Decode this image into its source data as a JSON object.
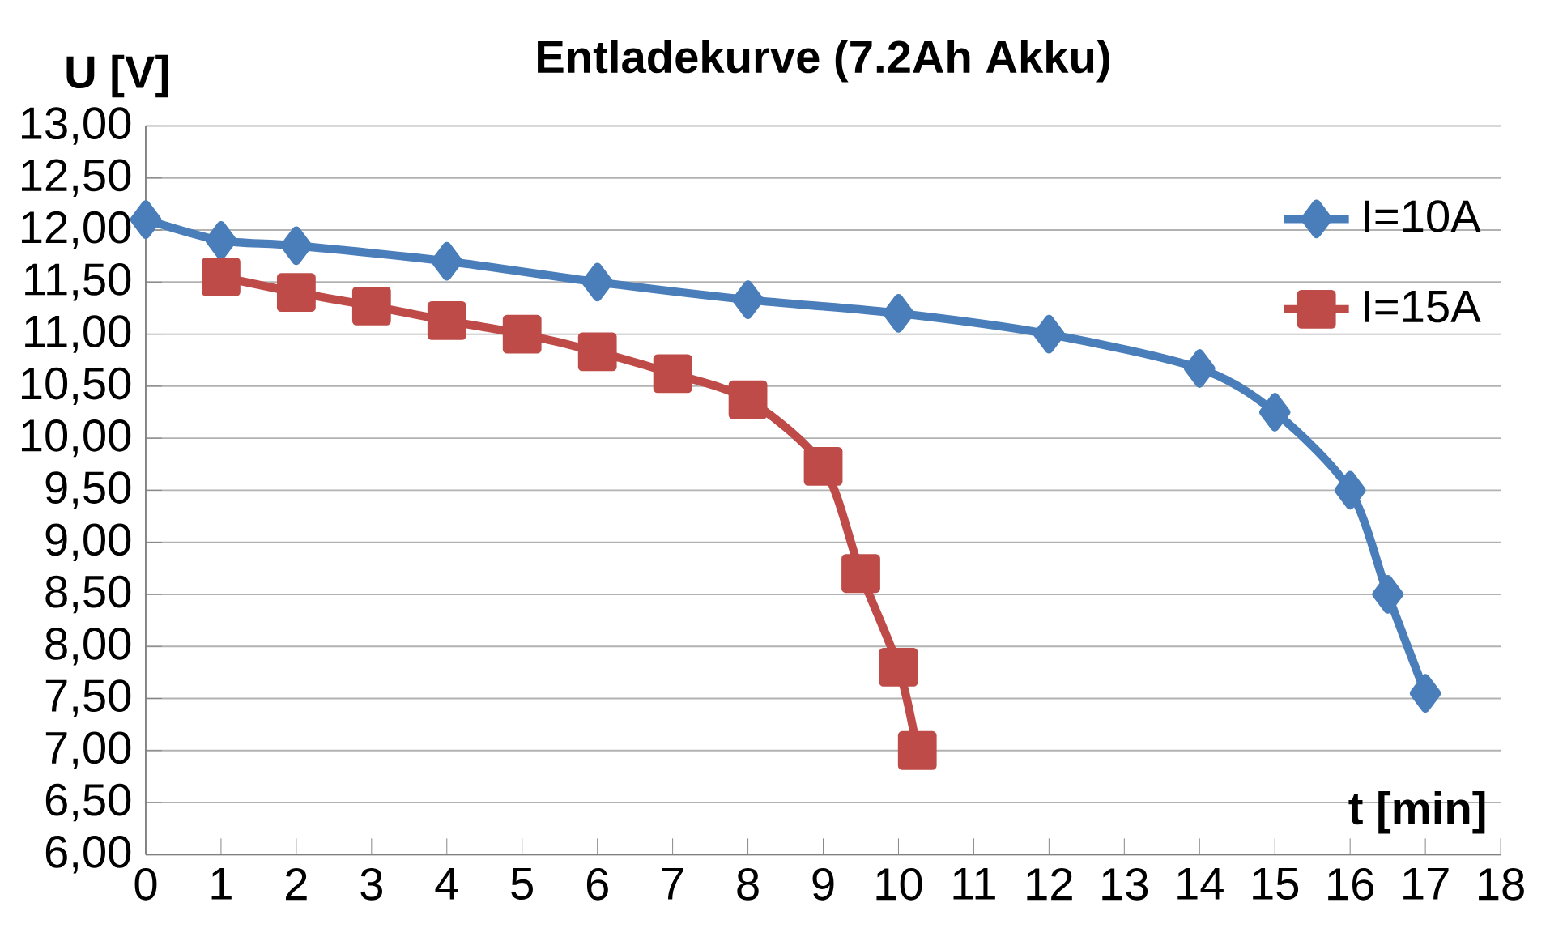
{
  "chart_data": {
    "type": "line",
    "title": "Entladekurve (7.2Ah Akku)",
    "xlabel": "t [min]",
    "ylabel": "U [V]",
    "xlim": [
      0,
      18
    ],
    "xticks": [
      0,
      1,
      2,
      3,
      4,
      5,
      6,
      7,
      8,
      9,
      10,
      11,
      12,
      13,
      14,
      15,
      16,
      17,
      18
    ],
    "ylim": [
      6,
      13
    ],
    "yticks": [
      {
        "value": 6,
        "label": "6,00"
      },
      {
        "value": 6.5,
        "label": "6,50"
      },
      {
        "value": 7,
        "label": "7,00"
      },
      {
        "value": 7.5,
        "label": "7,50"
      },
      {
        "value": 8,
        "label": "8,00"
      },
      {
        "value": 8.5,
        "label": "8,50"
      },
      {
        "value": 9,
        "label": "9,00"
      },
      {
        "value": 9.5,
        "label": "9,50"
      },
      {
        "value": 10,
        "label": "10,00"
      },
      {
        "value": 10.5,
        "label": "10,50"
      },
      {
        "value": 11,
        "label": "11,00"
      },
      {
        "value": 11.5,
        "label": "11,50"
      },
      {
        "value": 12,
        "label": "12,00"
      },
      {
        "value": 12.5,
        "label": "12,50"
      },
      {
        "value": 13,
        "label": "13,00"
      }
    ],
    "grid": "y",
    "legend": "top right",
    "series": [
      {
        "name": "I=10A",
        "color": "#4a7ebb",
        "marker": "diamond",
        "x": [
          0,
          1,
          2,
          4,
          6,
          8,
          10,
          12,
          14,
          15,
          16,
          16.5,
          17
        ],
        "values": [
          12.1,
          11.9,
          11.85,
          11.7,
          11.5,
          11.33,
          11.2,
          11.0,
          10.67,
          10.25,
          9.5,
          8.5,
          7.55
        ]
      },
      {
        "name": "I=15A",
        "color": "#be4b48",
        "marker": "square",
        "x": [
          1,
          2,
          3,
          4,
          5,
          6,
          7,
          8,
          9,
          9.5,
          10,
          10.25
        ],
        "values": [
          11.55,
          11.4,
          11.27,
          11.13,
          11.0,
          10.83,
          10.62,
          10.37,
          9.73,
          8.7,
          7.8,
          7.0
        ]
      }
    ]
  }
}
